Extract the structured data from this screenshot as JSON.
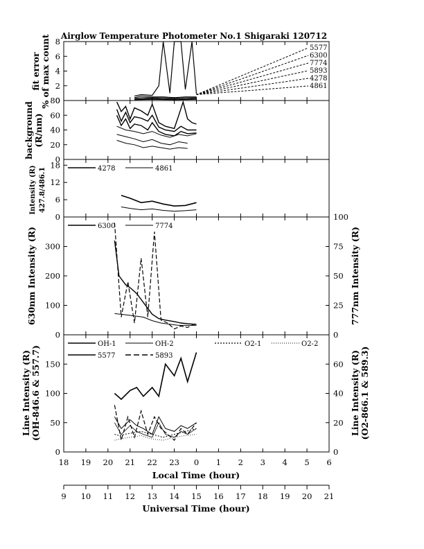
{
  "title": "Airglow Temperature Photometer No.1  Shigaraki  120712",
  "chart_data": [
    {
      "type": "line",
      "panel": "fit_error",
      "ylabel": [
        "fit error",
        "% of max count"
      ],
      "ylim": [
        0,
        8
      ],
      "yticks": [
        "0",
        "2",
        "4",
        "6",
        "8"
      ],
      "legend": [
        "5577",
        "6300",
        "7774",
        "5893",
        "4278",
        "4861"
      ],
      "series": [
        {
          "name": "5577",
          "x": [
            21.2,
            21.5,
            22.0,
            22.3,
            22.5,
            22.8,
            23.0,
            23.3,
            23.5,
            23.8,
            24.0
          ],
          "y": [
            0.6,
            0.8,
            0.7,
            2.0,
            8.0,
            1.0,
            8.0,
            8.0,
            1.5,
            8.0,
            0.9
          ]
        },
        {
          "name": "6300",
          "x": [
            21.2,
            21.5,
            22.0,
            22.5,
            23.0,
            23.5,
            24.0
          ],
          "y": [
            0.4,
            0.6,
            0.5,
            0.5,
            0.4,
            0.5,
            0.5
          ]
        },
        {
          "name": "7774",
          "x": [
            21.2,
            21.5,
            22.0,
            22.5,
            23.0,
            23.5,
            24.0
          ],
          "y": [
            0.3,
            0.4,
            0.4,
            0.4,
            0.3,
            0.4,
            0.4
          ]
        },
        {
          "name": "5893",
          "x": [
            21.2,
            22.0,
            23.0,
            24.0
          ],
          "y": [
            0.2,
            0.3,
            0.2,
            0.3
          ]
        },
        {
          "name": "4278",
          "x": [
            21.2,
            22.0,
            23.0,
            24.0
          ],
          "y": [
            0.15,
            0.2,
            0.15,
            0.2
          ]
        },
        {
          "name": "4861",
          "x": [
            21.2,
            22.0,
            23.0,
            24.0
          ],
          "y": [
            0.1,
            0.15,
            0.1,
            0.15
          ]
        }
      ]
    },
    {
      "type": "line",
      "panel": "background",
      "ylabel": [
        "background",
        "(R/nm)"
      ],
      "ylim": [
        0,
        80
      ],
      "yticks": [
        "0",
        "20",
        "40",
        "60",
        "80"
      ],
      "series": [
        {
          "x": [
            20.4,
            20.6,
            20.8,
            21.0,
            21.2,
            21.5,
            21.8,
            22.0,
            22.3,
            22.6,
            23.0,
            23.2,
            23.4,
            23.6,
            23.8,
            24.0
          ],
          "y": [
            78,
            65,
            72,
            55,
            70,
            66,
            60,
            75,
            50,
            45,
            42,
            60,
            78,
            55,
            50,
            48
          ]
        },
        {
          "x": [
            20.4,
            20.6,
            20.8,
            21.0,
            21.2,
            21.5,
            21.8,
            22.0,
            22.3,
            22.6,
            23.0,
            23.3,
            23.6,
            24.0
          ],
          "y": [
            68,
            52,
            64,
            50,
            58,
            56,
            52,
            60,
            44,
            40,
            38,
            45,
            40,
            40
          ]
        },
        {
          "x": [
            20.4,
            20.6,
            20.8,
            21.0,
            21.2,
            21.5,
            21.8,
            22.0,
            22.3,
            22.6,
            23.0,
            23.3,
            23.6,
            24.0
          ],
          "y": [
            60,
            46,
            55,
            42,
            48,
            46,
            40,
            50,
            38,
            34,
            32,
            38,
            35,
            36
          ]
        },
        {
          "x": [
            20.4,
            20.8,
            21.2,
            21.6,
            22.0,
            22.4,
            22.8,
            23.2,
            23.6,
            24.0
          ],
          "y": [
            45,
            40,
            38,
            35,
            38,
            33,
            30,
            34,
            32,
            35
          ]
        },
        {
          "x": [
            20.4,
            20.8,
            21.2,
            21.6,
            22.0,
            22.4,
            22.8,
            23.2,
            23.6
          ],
          "y": [
            34,
            31,
            28,
            24,
            27,
            22,
            20,
            24,
            22
          ]
        },
        {
          "x": [
            20.4,
            20.8,
            21.2,
            21.6,
            22.0,
            22.4,
            22.8,
            23.2,
            23.6
          ],
          "y": [
            26,
            22,
            20,
            16,
            18,
            16,
            14,
            16,
            15
          ]
        }
      ]
    },
    {
      "type": "line",
      "panel": "intensity_427_486",
      "ylabel": [
        "Intensity (R)",
        "427.8/486.1"
      ],
      "ylim": [
        0,
        20
      ],
      "yticks": [
        "0",
        "6",
        "12",
        "18"
      ],
      "series": [
        {
          "name": "4278",
          "x": [
            20.6,
            21.0,
            21.5,
            22.0,
            22.5,
            23.0,
            23.5,
            24.0
          ],
          "y": [
            7.5,
            6.5,
            5.0,
            5.5,
            4.5,
            3.8,
            4.0,
            5.0
          ]
        },
        {
          "name": "4861",
          "x": [
            20.6,
            21.0,
            21.5,
            22.0,
            22.5,
            23.0,
            23.5,
            24.0
          ],
          "y": [
            3.5,
            3.0,
            2.5,
            2.8,
            2.3,
            2.0,
            2.2,
            2.5
          ]
        }
      ]
    },
    {
      "type": "line",
      "panel": "intensity_630_777",
      "ylabel": "630nm Intensity (R)",
      "ylabel_right": "777nm Intensity (R)",
      "ylim": [
        0,
        400
      ],
      "ylim_right": [
        0,
        100
      ],
      "yticks": [
        "0",
        "100",
        "200",
        "300"
      ],
      "yticks_right": [
        "0",
        "25",
        "50",
        "75",
        "100"
      ],
      "series": [
        {
          "name": "6300",
          "x": [
            20.3,
            20.5,
            20.8,
            21.0,
            21.3,
            21.6,
            22.0,
            22.3,
            22.6,
            23.0,
            23.3,
            23.6,
            24.0
          ],
          "y": [
            320,
            200,
            170,
            160,
            140,
            110,
            70,
            55,
            50,
            45,
            40,
            38,
            35
          ]
        },
        {
          "name": "7774",
          "x": [
            20.3,
            20.8,
            21.2,
            21.6,
            22.0,
            22.4,
            22.8,
            23.2,
            23.6,
            24.0
          ],
          "y": [
            18,
            17,
            16,
            15,
            12,
            10,
            9,
            8,
            8,
            8
          ]
        },
        {
          "x": [
            20.3,
            20.6,
            20.9,
            21.2,
            21.5,
            21.8,
            22.1,
            22.4,
            22.7,
            23.0,
            23.3,
            23.6,
            24.0
          ],
          "y": [
            380,
            60,
            180,
            40,
            260,
            60,
            350,
            50,
            40,
            20,
            30,
            25,
            40
          ]
        }
      ]
    },
    {
      "type": "line",
      "panel": "line_intensity",
      "ylabel": [
        "Line Intensity (R)",
        "(OH-846.6 & 557.7)"
      ],
      "ylabel_right": [
        "Line Intensity (R)",
        "(O2-866.1 & 589.3)"
      ],
      "ylim": [
        0,
        200
      ],
      "ylim_right": [
        0,
        80
      ],
      "yticks": [
        "0",
        "50",
        "100",
        "150"
      ],
      "yticks_right": [
        "0",
        "20",
        "40",
        "60"
      ],
      "legend": [
        "OH-1",
        "OH-2",
        "O2-1",
        "O2-2",
        "5577",
        "5893"
      ],
      "series": [
        {
          "name": "OH-1",
          "x": [
            20.3,
            20.6,
            21.0,
            21.3,
            21.6,
            22.0,
            22.3,
            22.6,
            23.0,
            23.3,
            23.6,
            24.0
          ],
          "y": [
            60,
            40,
            55,
            45,
            40,
            30,
            60,
            40,
            35,
            45,
            40,
            50
          ]
        },
        {
          "name": "OH-2",
          "x": [
            20.3,
            20.6,
            21.0,
            21.3,
            21.6,
            22.0,
            22.3,
            22.6,
            23.0,
            23.3,
            23.6,
            24.0
          ],
          "y": [
            50,
            30,
            45,
            35,
            30,
            25,
            50,
            30,
            25,
            35,
            30,
            40
          ]
        },
        {
          "name": "O2-1",
          "x": [
            20.3,
            20.5,
            21.0,
            21.5,
            22.0,
            22.5,
            23.0,
            23.5,
            24.0
          ],
          "y": [
            30,
            28,
            32,
            35,
            30,
            25,
            30,
            35,
            40
          ]
        },
        {
          "name": "O2-2",
          "x": [
            20.3,
            20.5,
            21.0,
            21.5,
            22.0,
            22.5,
            23.0,
            23.5,
            24.0
          ],
          "y": [
            20,
            22,
            25,
            28,
            22,
            20,
            25,
            28,
            30
          ]
        },
        {
          "name": "5577",
          "x": [
            20.3,
            20.6,
            21.0,
            21.3,
            21.6,
            22.0,
            22.3,
            22.6,
            23.0,
            23.3,
            23.6,
            24.0
          ],
          "y": [
            100,
            90,
            105,
            110,
            95,
            110,
            95,
            150,
            130,
            160,
            120,
            170
          ]
        },
        {
          "name": "5893",
          "x": [
            20.3,
            20.6,
            20.9,
            21.2,
            21.5,
            21.8,
            22.1,
            22.4,
            22.7,
            23.0,
            23.3,
            23.6,
            24.0
          ],
          "y": [
            80,
            20,
            60,
            25,
            70,
            30,
            60,
            40,
            30,
            20,
            40,
            30,
            50
          ]
        }
      ]
    }
  ],
  "x_axis_local": {
    "label": "Local Time (hour)",
    "ticks": [
      "18",
      "19",
      "20",
      "21",
      "22",
      "23",
      "0",
      "1",
      "2",
      "3",
      "4",
      "5",
      "6"
    ]
  },
  "x_axis_ut": {
    "label": "Universal Time (hour)",
    "ticks": [
      "9",
      "10",
      "11",
      "12",
      "13",
      "14",
      "15",
      "16",
      "17",
      "18",
      "19",
      "20",
      "21"
    ]
  }
}
